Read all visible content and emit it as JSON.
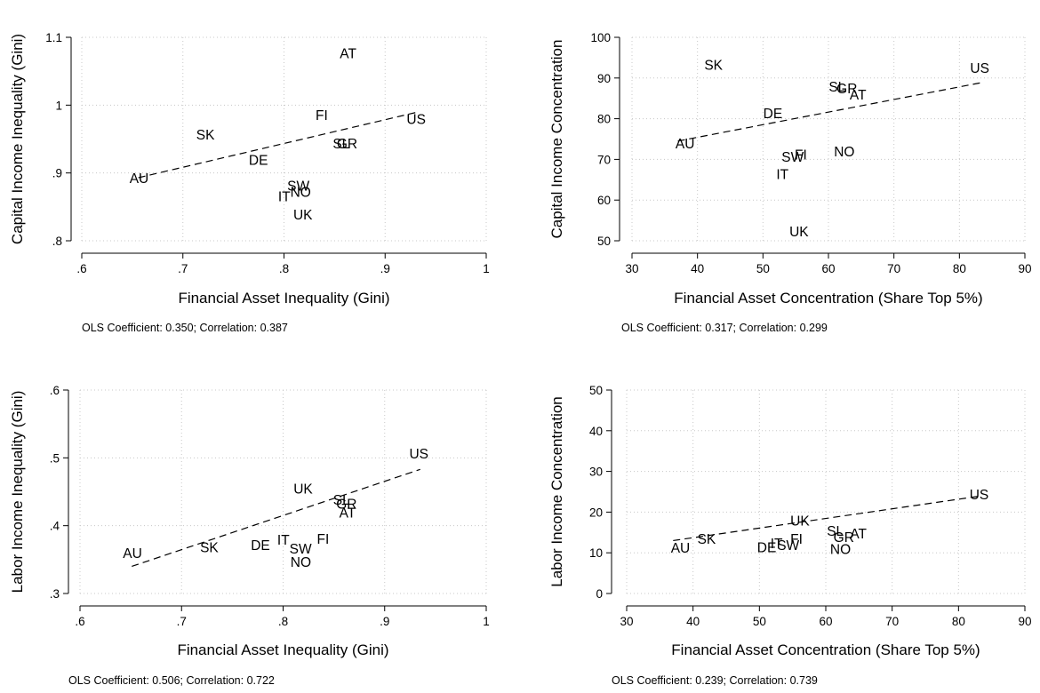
{
  "chart_data": [
    {
      "type": "scatter",
      "xlabel": "Financial Asset Inequality (Gini)",
      "ylabel": "Capital Income Inequality (Gini)",
      "xlim": [
        0.6,
        1.0
      ],
      "ylim": [
        0.8,
        1.1
      ],
      "xticks": [
        ".6",
        ".7",
        ".8",
        ".9",
        "1"
      ],
      "yticks": [
        ".8",
        ".9",
        "1",
        "1.1"
      ],
      "grid": true,
      "points": [
        {
          "label": "AU",
          "x": 0.656,
          "y": 0.893
        },
        {
          "label": "SK",
          "x": 0.722,
          "y": 0.957
        },
        {
          "label": "DE",
          "x": 0.774,
          "y": 0.92
        },
        {
          "label": "FI",
          "x": 0.84,
          "y": 0.986
        },
        {
          "label": "AT",
          "x": 0.864,
          "y": 1.077
        },
        {
          "label": "US",
          "x": 0.93,
          "y": 0.98
        },
        {
          "label": "GR",
          "x": 0.861,
          "y": 0.944
        },
        {
          "label": "SL",
          "x": 0.857,
          "y": 0.944
        },
        {
          "label": "SW",
          "x": 0.812,
          "y": 0.882
        },
        {
          "label": "NO",
          "x": 0.815,
          "y": 0.873
        },
        {
          "label": "IT",
          "x": 0.803,
          "y": 0.866
        },
        {
          "label": "UK",
          "x": 0.818,
          "y": 0.839
        }
      ],
      "fit": {
        "x": [
          0.656,
          0.93
        ],
        "y": [
          0.893,
          0.989
        ]
      },
      "note": "OLS Coefficient: 0.350; Correlation: 0.387"
    },
    {
      "type": "scatter",
      "xlabel": "Financial Asset Concentration (Share Top 5%)",
      "ylabel": "Capital Income Concentration",
      "xlim": [
        30,
        90
      ],
      "ylim": [
        50,
        100
      ],
      "xticks": [
        "30",
        "40",
        "50",
        "60",
        "70",
        "80",
        "90"
      ],
      "yticks": [
        "50",
        "60",
        "70",
        "80",
        "90",
        "100"
      ],
      "grid": true,
      "points": [
        {
          "label": "SK",
          "x": 42.4,
          "y": 93.3
        },
        {
          "label": "US",
          "x": 83.0,
          "y": 92.6
        },
        {
          "label": "SL",
          "x": 61.4,
          "y": 88.0
        },
        {
          "label": "GR",
          "x": 62.6,
          "y": 87.6
        },
        {
          "label": "AT",
          "x": 64.6,
          "y": 86.0
        },
        {
          "label": "DE",
          "x": 51.4,
          "y": 81.4
        },
        {
          "label": "AU",
          "x": 38.0,
          "y": 74.0
        },
        {
          "label": "NO",
          "x": 62.2,
          "y": 72.0
        },
        {
          "label": "SW",
          "x": 54.2,
          "y": 70.7
        },
        {
          "label": "FI",
          "x": 56.2,
          "y": 71.3
        },
        {
          "label": "IT",
          "x": 53.4,
          "y": 66.5
        },
        {
          "label": "UK",
          "x": 55.4,
          "y": 52.4
        }
      ],
      "fit": {
        "x": [
          37.0,
          83.5
        ],
        "y": [
          74.5,
          88.9
        ]
      },
      "note": "OLS Coefficient: 0.317; Correlation: 0.299"
    },
    {
      "type": "scatter",
      "xlabel": "Financial Asset Inequality (Gini)",
      "ylabel": "Labor Income Inequality (Gini)",
      "xlim": [
        0.6,
        1.0
      ],
      "ylim": [
        0.3,
        0.6
      ],
      "xticks": [
        ".6",
        ".7",
        ".8",
        ".9",
        "1"
      ],
      "yticks": [
        ".3",
        ".4",
        ".5",
        ".6"
      ],
      "grid": true,
      "points": [
        {
          "label": "AU",
          "x": 0.651,
          "y": 0.36
        },
        {
          "label": "SK",
          "x": 0.727,
          "y": 0.369
        },
        {
          "label": "DE",
          "x": 0.777,
          "y": 0.372
        },
        {
          "label": "IT",
          "x": 0.803,
          "y": 0.38
        },
        {
          "label": "SW",
          "x": 0.815,
          "y": 0.367
        },
        {
          "label": "NO",
          "x": 0.816,
          "y": 0.347
        },
        {
          "label": "FI",
          "x": 0.842,
          "y": 0.381
        },
        {
          "label": "UK",
          "x": 0.819,
          "y": 0.455
        },
        {
          "label": "SL",
          "x": 0.858,
          "y": 0.439
        },
        {
          "label": "GR",
          "x": 0.861,
          "y": 0.433
        },
        {
          "label": "AT",
          "x": 0.864,
          "y": 0.42
        },
        {
          "label": "US",
          "x": 0.933,
          "y": 0.507
        }
      ],
      "fit": {
        "x": [
          0.651,
          0.935
        ],
        "y": [
          0.34,
          0.483
        ]
      },
      "note": "OLS Coefficient: 0.506; Correlation: 0.722"
    },
    {
      "type": "scatter",
      "xlabel": "Financial Asset Concentration (Share Top 5%)",
      "ylabel": "Labor Income Concentration",
      "xlim": [
        30,
        90
      ],
      "ylim": [
        0,
        50
      ],
      "xticks": [
        "30",
        "40",
        "50",
        "60",
        "70",
        "80",
        "90"
      ],
      "yticks": [
        "0",
        "10",
        "20",
        "30",
        "40",
        "50"
      ],
      "grid": true,
      "points": [
        {
          "label": "AU",
          "x": 38.0,
          "y": 11.3
        },
        {
          "label": "SK",
          "x": 42.0,
          "y": 13.5
        },
        {
          "label": "DE",
          "x": 51.0,
          "y": 11.5
        },
        {
          "label": "IT",
          "x": 53.0,
          "y": 12.5
        },
        {
          "label": "SW",
          "x": 54.0,
          "y": 12.0
        },
        {
          "label": "FI",
          "x": 56.0,
          "y": 13.5
        },
        {
          "label": "UK",
          "x": 56.0,
          "y": 18.0
        },
        {
          "label": "SL",
          "x": 61.5,
          "y": 15.5
        },
        {
          "label": "GR",
          "x": 62.5,
          "y": 14.0
        },
        {
          "label": "AT",
          "x": 65.0,
          "y": 14.8
        },
        {
          "label": "NO",
          "x": 62.0,
          "y": 11.0
        },
        {
          "label": "US",
          "x": 83.0,
          "y": 24.5
        }
      ],
      "fit": {
        "x": [
          37.0,
          83.5
        ],
        "y": [
          13.0,
          24.0
        ]
      },
      "note": "OLS Coefficient: 0.239; Correlation: 0.739"
    }
  ]
}
